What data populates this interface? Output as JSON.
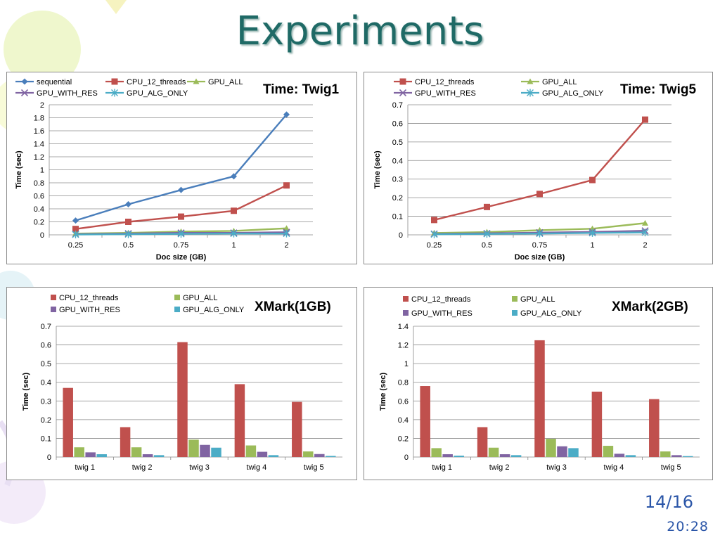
{
  "slide": {
    "title": "Experiments",
    "page_number": "14/16",
    "time": "20:28"
  },
  "colors": {
    "sequential": "#4a7ebb",
    "CPU_12_threads": "#c0504d",
    "GPU_ALL": "#9bbb59",
    "GPU_WITH_RES": "#8064a2",
    "GPU_ALG_ONLY": "#4bacc6",
    "title": "#1f6a66",
    "page_number": "#2b56a8"
  },
  "chart_data": [
    {
      "id": "twig1",
      "type": "line",
      "title": "Time: Twig1",
      "xlabel": "Doc size (GB)",
      "ylabel": "Time (sec)",
      "categories": [
        "0.25",
        "0.5",
        "0.75",
        "1",
        "2"
      ],
      "yticks": [
        "0",
        "0.2",
        "0.4",
        "0.6",
        "0.8",
        "1",
        "1.2",
        "1.4",
        "1.6",
        "1.8",
        "2"
      ],
      "ylim": [
        0,
        2
      ],
      "grid": true,
      "legend_placement": "top-left",
      "series": [
        {
          "name": "sequential",
          "marker": "diamond",
          "values": [
            0.22,
            0.47,
            0.69,
            0.9,
            1.85
          ]
        },
        {
          "name": "CPU_12_threads",
          "marker": "square",
          "values": [
            0.09,
            0.2,
            0.28,
            0.37,
            0.76
          ]
        },
        {
          "name": "GPU_ALL",
          "marker": "triangle",
          "values": [
            0.02,
            0.03,
            0.05,
            0.06,
            0.1
          ]
        },
        {
          "name": "GPU_WITH_RES",
          "marker": "x",
          "values": [
            0.01,
            0.02,
            0.03,
            0.03,
            0.04
          ]
        },
        {
          "name": "GPU_ALG_ONLY",
          "marker": "star",
          "values": [
            0.005,
            0.01,
            0.015,
            0.02,
            0.02
          ]
        }
      ]
    },
    {
      "id": "twig5",
      "type": "line",
      "title": "Time: Twig5",
      "xlabel": "Doc size (GB)",
      "ylabel": "Time (sec)",
      "categories": [
        "0.25",
        "0.5",
        "0.75",
        "1",
        "2"
      ],
      "yticks": [
        "0",
        "0.1",
        "0.2",
        "0.3",
        "0.4",
        "0.5",
        "0.6",
        "0.7"
      ],
      "ylim": [
        0,
        0.7
      ],
      "grid": true,
      "legend_placement": "top-left",
      "series": [
        {
          "name": "CPU_12_threads",
          "marker": "square",
          "values": [
            0.08,
            0.15,
            0.22,
            0.295,
            0.62
          ]
        },
        {
          "name": "GPU_ALL",
          "marker": "triangle",
          "values": [
            0.01,
            0.015,
            0.025,
            0.033,
            0.063
          ]
        },
        {
          "name": "GPU_WITH_RES",
          "marker": "x",
          "values": [
            0.005,
            0.008,
            0.012,
            0.016,
            0.022
          ]
        },
        {
          "name": "GPU_ALG_ONLY",
          "marker": "star",
          "values": [
            0.003,
            0.005,
            0.007,
            0.01,
            0.013
          ]
        }
      ]
    },
    {
      "id": "xmark1gb",
      "type": "bar",
      "title": "XMark(1GB)",
      "xlabel": "",
      "ylabel": "Time (sec)",
      "categories": [
        "twig 1",
        "twig 2",
        "twig 3",
        "twig 4",
        "twig 5"
      ],
      "yticks": [
        "0",
        "0.1",
        "0.2",
        "0.3",
        "0.4",
        "0.5",
        "0.6",
        "0.7"
      ],
      "ylim": [
        0,
        0.7
      ],
      "grid": true,
      "legend_placement": "top-left",
      "series": [
        {
          "name": "CPU_12_threads",
          "values": [
            0.37,
            0.16,
            0.615,
            0.39,
            0.295
          ]
        },
        {
          "name": "GPU_ALL",
          "values": [
            0.052,
            0.052,
            0.093,
            0.062,
            0.03
          ]
        },
        {
          "name": "GPU_WITH_RES",
          "values": [
            0.025,
            0.015,
            0.065,
            0.028,
            0.016
          ]
        },
        {
          "name": "GPU_ALG_ONLY",
          "values": [
            0.015,
            0.01,
            0.05,
            0.01,
            0.006
          ]
        }
      ]
    },
    {
      "id": "xmark2gb",
      "type": "bar",
      "title": "XMark(2GB)",
      "xlabel": "",
      "ylabel": "Time (sec)",
      "categories": [
        "twig 1",
        "twig 2",
        "twig 3",
        "twig 4",
        "twig 5"
      ],
      "yticks": [
        "0",
        "0.2",
        "0.4",
        "0.6",
        "0.8",
        "1",
        "1.2",
        "1.4"
      ],
      "ylim": [
        0,
        1.4
      ],
      "grid": true,
      "legend_placement": "top-left",
      "series": [
        {
          "name": "CPU_12_threads",
          "values": [
            0.76,
            0.32,
            1.25,
            0.7,
            0.62
          ]
        },
        {
          "name": "GPU_ALL",
          "values": [
            0.095,
            0.1,
            0.195,
            0.12,
            0.06
          ]
        },
        {
          "name": "GPU_WITH_RES",
          "values": [
            0.03,
            0.03,
            0.115,
            0.035,
            0.02
          ]
        },
        {
          "name": "GPU_ALG_ONLY",
          "values": [
            0.015,
            0.02,
            0.095,
            0.02,
            0.01
          ]
        }
      ]
    }
  ]
}
